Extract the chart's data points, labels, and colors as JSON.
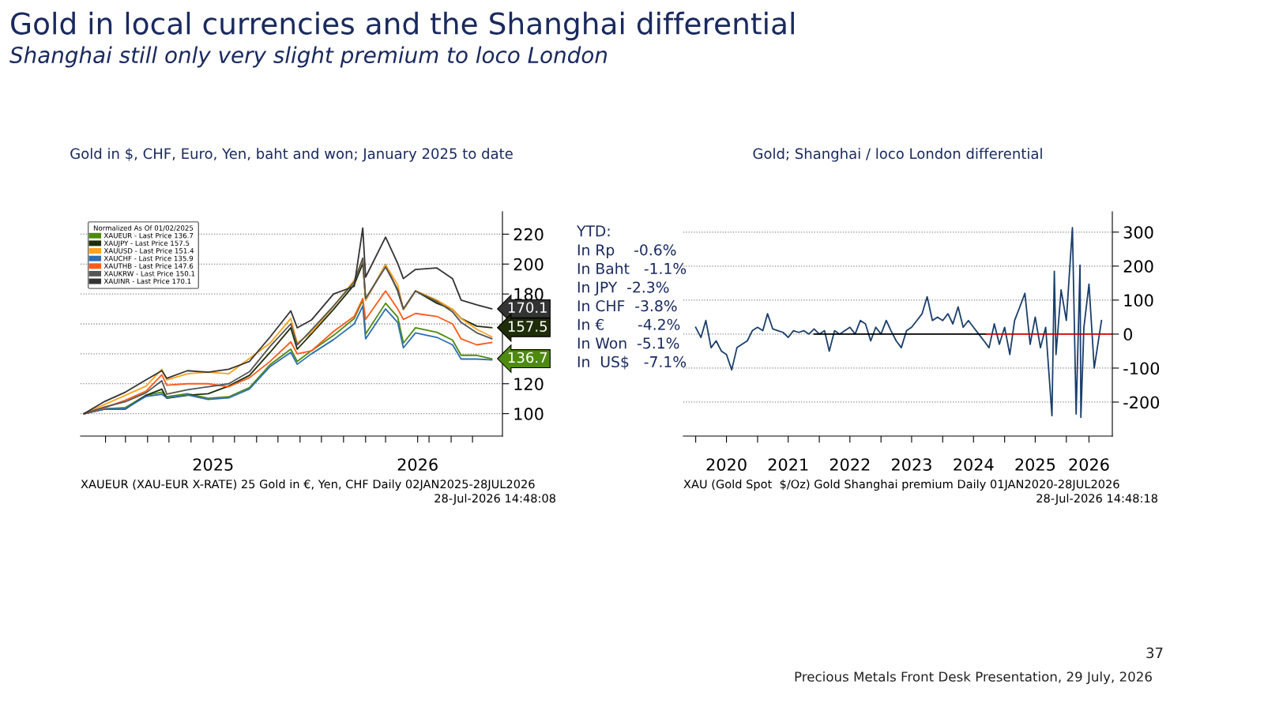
{
  "chart_data": [
    {
      "type": "other",
      "title": "Gold in local currencies and the Shanghai differential",
      "subtitle": "Shanghai still only very slight premium to loco London",
      "annotations": [
        "37",
        "Precious Metals Front Desk Presentation, 29 July, 2026"
      ]
    },
    {
      "type": "line",
      "title": "Gold in $, CHF, Euro, Yen, baht and won; January 2025 to date",
      "legend_title": "Normalized As Of 01/02/2025",
      "legend": "top left",
      "grid": "y",
      "x": [
        "2025-01-02",
        "2025-01-31",
        "2025-03-01",
        "2025-03-30",
        "2025-04-21",
        "2025-04-28",
        "2025-05-27",
        "2025-06-25",
        "2025-07-24",
        "2025-08-22",
        "2025-09-20",
        "2025-10-19",
        "2025-10-28",
        "2025-11-17",
        "2025-12-18",
        "2026-01-16",
        "2026-01-28",
        "2026-02-01",
        "2026-03-01",
        "2026-03-18",
        "2026-03-26",
        "2026-04-12",
        "2026-05-12",
        "2026-06-03",
        "2026-06-15",
        "2026-07-07",
        "2026-07-28"
      ],
      "xlim": [
        "2024-12-28",
        "2026-08-12"
      ],
      "xticks": [
        {
          "value": "2025-02-01",
          "label": null
        },
        {
          "value": "2025-03-01",
          "label": null
        },
        {
          "value": "2025-04-01",
          "label": null
        },
        {
          "value": "2025-05-01",
          "label": null
        },
        {
          "value": "2025-06-01",
          "label": null
        },
        {
          "value": "2025-07-02",
          "label": "2025"
        },
        {
          "value": "2025-08-01",
          "label": null
        },
        {
          "value": "2025-09-01",
          "label": null
        },
        {
          "value": "2025-10-01",
          "label": null
        },
        {
          "value": "2025-11-01",
          "label": null
        },
        {
          "value": "2025-12-01",
          "label": null
        },
        {
          "value": "2026-01-01",
          "label": null
        },
        {
          "value": "2026-02-01",
          "label": null
        },
        {
          "value": "2026-03-01",
          "label": null
        },
        {
          "value": "2026-04-15",
          "label": "2026"
        },
        {
          "value": "2026-05-01",
          "label": null
        },
        {
          "value": "2026-06-01",
          "label": null
        },
        {
          "value": "2026-07-01",
          "label": null
        }
      ],
      "ylim": [
        85,
        235
      ],
      "yticks": [
        100,
        120,
        {
          "value": 140,
          "label": null
        },
        {
          "value": 160,
          "label": null
        },
        180,
        200,
        220
      ],
      "series": [
        {
          "name": "XAUEUR - Last Price 136.7",
          "color": "#4e8a0e",
          "values": [
            100,
            103.1,
            104.1,
            112.3,
            114.4,
            111.3,
            113.3,
            110.3,
            111.3,
            117.4,
            132.8,
            143.1,
            134.9,
            142.1,
            152.3,
            163.6,
            175.9,
            153.3,
            173.8,
            164.6,
            147.2,
            157.4,
            154.4,
            149.2,
            139,
            139,
            136.7
          ]
        },
        {
          "name": "XAUJPY - Last Price 157.5",
          "color": "#1f2d0a",
          "values": [
            100,
            103.1,
            103.1,
            112.3,
            116.4,
            110.3,
            112.3,
            113.3,
            118.5,
            125.6,
            141,
            157.4,
            143.1,
            153.3,
            169.7,
            186.2,
            200.5,
            175.9,
            199.5,
            182.1,
            169.7,
            182.1,
            173.8,
            169.7,
            163.6,
            158.5,
            157.5
          ]
        },
        {
          "name": "XAUUSD - Last Price 151.4",
          "color": "#ffa31a",
          "values": [
            100,
            106.2,
            112.3,
            118.5,
            129.7,
            122.6,
            126.7,
            127.7,
            126.7,
            136.9,
            147.2,
            163.6,
            147.2,
            154.4,
            171.8,
            189.2,
            203.6,
            175.9,
            199.5,
            186.2,
            169.7,
            182.1,
            175.9,
            169.7,
            163.6,
            156.4,
            151.4
          ]
        },
        {
          "name": "XAUCHF - Last Price 135.9",
          "color": "#2e6fb0",
          "values": [
            100,
            103,
            103.5,
            111.5,
            113,
            110.5,
            112.5,
            109.5,
            110.5,
            116.5,
            131.5,
            141,
            133,
            140,
            149.5,
            160,
            172,
            150,
            170,
            161,
            144,
            154,
            151,
            146,
            136.5,
            136.5,
            135.9
          ]
        },
        {
          "name": "XAUTHB - Last Price 147.6",
          "color": "#ff5a1a",
          "values": [
            100,
            104,
            109,
            115,
            126,
            119,
            120,
            120,
            118,
            124,
            135,
            148,
            140,
            142,
            155,
            165,
            177,
            163,
            182,
            170,
            163,
            167,
            165,
            160,
            150,
            146,
            147.6
          ]
        },
        {
          "name": "XAUKRW - Last Price 150.1",
          "color": "#555555",
          "values": [
            100,
            104.5,
            108,
            114,
            122,
            113,
            116,
            118,
            120,
            128,
            145,
            160,
            146,
            156,
            172,
            188,
            204,
            177,
            198,
            183,
            170,
            182,
            175,
            168,
            161,
            154,
            150.1
          ]
        },
        {
          "name": "XAUINR - Last Price 170.1",
          "color": "#333333",
          "values": [
            100,
            108.2,
            114.4,
            122.6,
            128.7,
            123.6,
            128.7,
            127.7,
            129.7,
            134.9,
            151.3,
            168.7,
            157.4,
            162.6,
            180,
            185.1,
            224.1,
            191.3,
            218,
            200.5,
            190.3,
            196.4,
            197.4,
            190.3,
            175.9,
            172.8,
            170.1
          ]
        }
      ],
      "annotations": [
        "XAUEUR (XAU-EUR X-RATE) 25 Gold in €, Yen, CHF Daily 02JAN2025-28JUL2026",
        "28-Jul-2026 14:48:08",
        {
          "text": "170.1",
          "x": "2026-07-28",
          "y": 170.1
        },
        {
          "text": "157.5",
          "x": "2026-07-28",
          "y": 157.5
        },
        {
          "text": "136.7",
          "x": "2026-07-28",
          "y": 136.7
        }
      ]
    },
    {
      "type": "other",
      "title": "YTD:",
      "annotations": [
        "In Rp    -0.6%",
        "In Baht   -1.1%",
        "In JPY  -2.3%",
        "In CHF  -3.8%",
        "In €       -4.2%",
        "In Won  -5.1%",
        "In  US$   -7.1%"
      ]
    },
    {
      "type": "line",
      "title": "Gold; Shanghai / loco London differential",
      "grid": "y",
      "xlim": [
        "2019-10-20",
        "2026-09-30"
      ],
      "xticks": [
        {
          "value": "2020-01-01",
          "label": null
        },
        {
          "value": "2020-07-01",
          "label": "2020"
        },
        {
          "value": "2021-01-01",
          "label": null
        },
        {
          "value": "2021-07-01",
          "label": "2021"
        },
        {
          "value": "2022-01-01",
          "label": null
        },
        {
          "value": "2022-07-01",
          "label": "2022"
        },
        {
          "value": "2023-01-01",
          "label": null
        },
        {
          "value": "2023-07-01",
          "label": "2023"
        },
        {
          "value": "2024-01-01",
          "label": null
        },
        {
          "value": "2024-07-01",
          "label": "2024"
        },
        {
          "value": "2025-01-01",
          "label": null
        },
        {
          "value": "2025-07-01",
          "label": "2025"
        },
        {
          "value": "2026-01-01",
          "label": null
        },
        {
          "value": "2026-05-15",
          "label": "2026"
        }
      ],
      "ylim": [
        -300,
        360
      ],
      "yticks": [
        {
          "value": -200,
          "label": "-200"
        },
        {
          "value": -100,
          "label": "-100"
        },
        0,
        100,
        200,
        300
      ],
      "series": [
        {
          "color": "#1b3f6b",
          "x": [
            "2020-01-01",
            "2020-02-01",
            "2020-03-01",
            "2020-04-01",
            "2020-05-01",
            "2020-06-01",
            "2020-07-01",
            "2020-08-01",
            "2020-09-01",
            "2020-10-01",
            "2020-11-01",
            "2020-12-01",
            "2021-01-01",
            "2021-02-01",
            "2021-03-01",
            "2021-04-01",
            "2021-05-01",
            "2021-06-01",
            "2021-07-01",
            "2021-08-01",
            "2021-09-01",
            "2021-10-01",
            "2021-11-01",
            "2021-12-01",
            "2022-01-01",
            "2022-02-01",
            "2022-03-01",
            "2022-04-01",
            "2022-05-01",
            "2022-07-01",
            "2022-08-01",
            "2022-09-01",
            "2022-10-01",
            "2022-11-01",
            "2022-12-01",
            "2023-01-01",
            "2023-02-01",
            "2023-03-01",
            "2023-04-01",
            "2023-05-01",
            "2023-06-01",
            "2023-07-01",
            "2023-08-01",
            "2023-09-01",
            "2023-10-01",
            "2023-11-01",
            "2023-12-01",
            "2024-01-01",
            "2024-02-01",
            "2024-03-01",
            "2024-04-01",
            "2024-05-01",
            "2024-06-01",
            "2024-07-01",
            "2024-08-01",
            "2024-09-01",
            "2024-10-01",
            "2024-11-01",
            "2024-12-01",
            "2025-01-01",
            "2025-02-01",
            "2025-03-01",
            "2025-04-01",
            "2025-05-01",
            "2025-06-01",
            "2025-07-01",
            "2025-08-01",
            "2025-09-01",
            "2025-10-08",
            "2025-10-22",
            "2025-11-01",
            "2025-12-01",
            "2026-01-01",
            "2026-02-06",
            "2026-02-28",
            "2026-03-23",
            "2026-03-28",
            "2026-04-15",
            "2026-05-15",
            "2026-06-15",
            "2026-07-28"
          ],
          "values": [
            20,
            -10,
            40,
            -40,
            -20,
            -50,
            -60,
            -105,
            -40,
            -30,
            -20,
            10,
            20,
            10,
            60,
            15,
            10,
            5,
            -10,
            10,
            5,
            10,
            0,
            15,
            0,
            10,
            -50,
            10,
            0,
            20,
            0,
            40,
            30,
            -20,
            20,
            0,
            40,
            10,
            -20,
            -40,
            10,
            20,
            40,
            60,
            110,
            40,
            50,
            40,
            60,
            30,
            80,
            20,
            40,
            20,
            0,
            -20,
            -40,
            30,
            -30,
            20,
            -60,
            40,
            80,
            120,
            -30,
            50,
            -40,
            20,
            -240,
            185,
            -60,
            130,
            40,
            313,
            -235,
            203,
            -245,
            20,
            147,
            -100,
            40
          ]
        },
        {
          "color": "#000000",
          "x": [
            "2021-12-01",
            "2024-09-15"
          ],
          "values": [
            0,
            0
          ]
        },
        {
          "color": "#d00000",
          "x": [
            "2024-09-15",
            "2026-09-30"
          ],
          "values": [
            0,
            0
          ]
        }
      ],
      "annotations": [
        "XAU (Gold Spot  $/Oz) Gold Shanghai premium Daily 01JAN2020-28JUL2026",
        "28-Jul-2026 14:48:18"
      ]
    }
  ]
}
